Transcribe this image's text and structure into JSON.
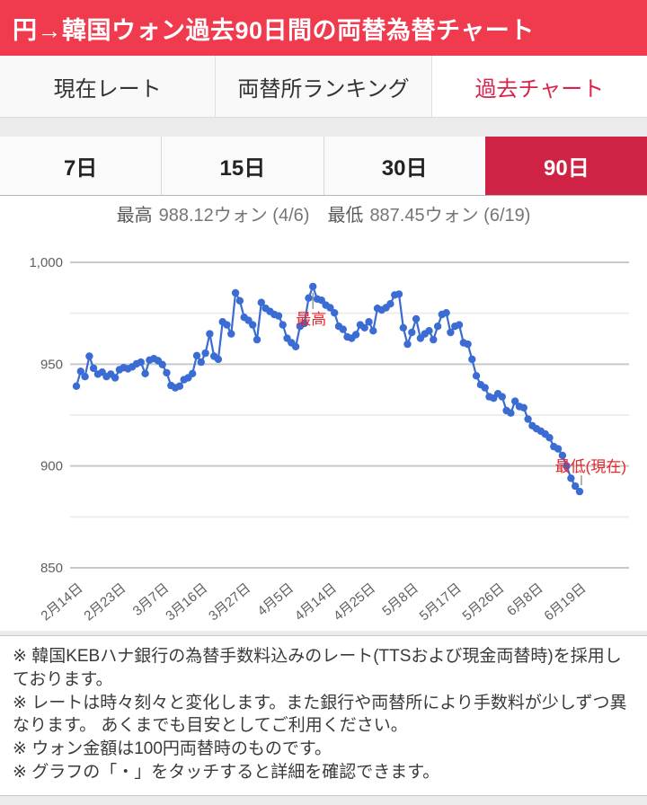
{
  "header": {
    "title": "円→韓国ウォン過去90日間の両替為替チャート"
  },
  "nav_tabs": [
    {
      "label": "現在レート",
      "active": false
    },
    {
      "label": "両替所ランキング",
      "active": false
    },
    {
      "label": "過去チャート",
      "active": true
    }
  ],
  "period_tabs": [
    {
      "label": "7日",
      "active": false
    },
    {
      "label": "15日",
      "active": false
    },
    {
      "label": "30日",
      "active": false
    },
    {
      "label": "90日",
      "active": true
    }
  ],
  "summary": {
    "high_label": "最高",
    "high_text": "988.12ウォン (4/6)",
    "low_label": "最低",
    "low_text": "887.45ウォン (6/19)"
  },
  "chart_data": {
    "type": "line",
    "unit": "ウォン",
    "ylim": [
      850,
      1000
    ],
    "y_ticks": [
      1000,
      950,
      900,
      850
    ],
    "y_tick_labels": [
      "1,000",
      "950",
      "900",
      "850"
    ],
    "y_minor_ticks": [
      975,
      925,
      875
    ],
    "x_tick_labels": [
      "2月14日",
      "2月23日",
      "3月7日",
      "3月16日",
      "3月27日",
      "4月5日",
      "4月14日",
      "4月25日",
      "5月8日",
      "5月17日",
      "5月26日",
      "6月8日",
      "6月19日"
    ],
    "values": [
      939.2,
      946.5,
      943.9,
      953.9,
      948.0,
      945.1,
      946.1,
      943.9,
      945.1,
      943.3,
      947.3,
      948.3,
      947.7,
      948.7,
      950.2,
      951.0,
      945.4,
      952.0,
      952.7,
      951.7,
      949.8,
      945.8,
      939.5,
      938.4,
      939.2,
      942.4,
      943.3,
      945.4,
      954.2,
      951.0,
      955.4,
      964.9,
      953.9,
      952.4,
      970.8,
      969.3,
      964.9,
      985.0,
      981.1,
      973.0,
      971.5,
      969.3,
      962.0,
      980.3,
      977.4,
      975.9,
      974.4,
      973.7,
      969.3,
      962.7,
      960.5,
      958.6,
      968.6,
      970.0,
      982.5,
      988.12,
      982.0,
      981.4,
      979.0,
      977.7,
      975.2,
      968.6,
      967.1,
      963.4,
      962.7,
      964.5,
      969.3,
      967.9,
      970.8,
      966.4,
      977.4,
      976.6,
      977.7,
      979.6,
      984.0,
      984.4,
      967.9,
      959.8,
      965.6,
      972.2,
      962.7,
      964.9,
      966.4,
      962.0,
      968.6,
      974.4,
      975.2,
      965.6,
      968.6,
      969.3,
      960.5,
      959.8,
      952.4,
      944.3,
      939.9,
      938.4,
      934.0,
      933.3,
      935.5,
      934.0,
      927.2,
      926.0,
      931.8,
      929.2,
      928.6,
      923.0,
      919.8,
      918.3,
      917.1,
      915.7,
      913.9,
      909.5,
      908.4,
      905.2,
      900.0,
      894.0,
      890.1,
      887.45
    ],
    "high": {
      "value": 988.12,
      "date": "4/6"
    },
    "low": {
      "value": 887.45,
      "date": "6/19"
    },
    "annotations": {
      "max_label": "最高",
      "last_label": "最低(現在)"
    },
    "legend": "none",
    "grid": true,
    "series_color": "#3a6cd3"
  },
  "notes": [
    "※ 韓国KEBハナ銀行の為替手数料込みのレート(TTSおよび現金両替時)を採用しております。",
    "※ レートは時々刻々と変化します。また銀行や両替所により手数料が少しずつ異なります。 あくまでも目安としてご利用ください。",
    "※ ウォン金額は100円両替時のものです。",
    "※ グラフの「・」をタッチすると詳細を確認できます。"
  ],
  "colors": {
    "header_red": "#f03a4e",
    "active_period_tab_red": "#ce2344",
    "active_nav_tab_text": "#d6244b",
    "series_blue": "#3a6cd3",
    "annotation_red": "#e8252c",
    "grid_major": "#c9c9c9",
    "grid_minor": "#ededed",
    "axis_text": "#5f5f5f",
    "annotation_stem": "#9a9a9a",
    "page_background": "#ebebeb"
  }
}
